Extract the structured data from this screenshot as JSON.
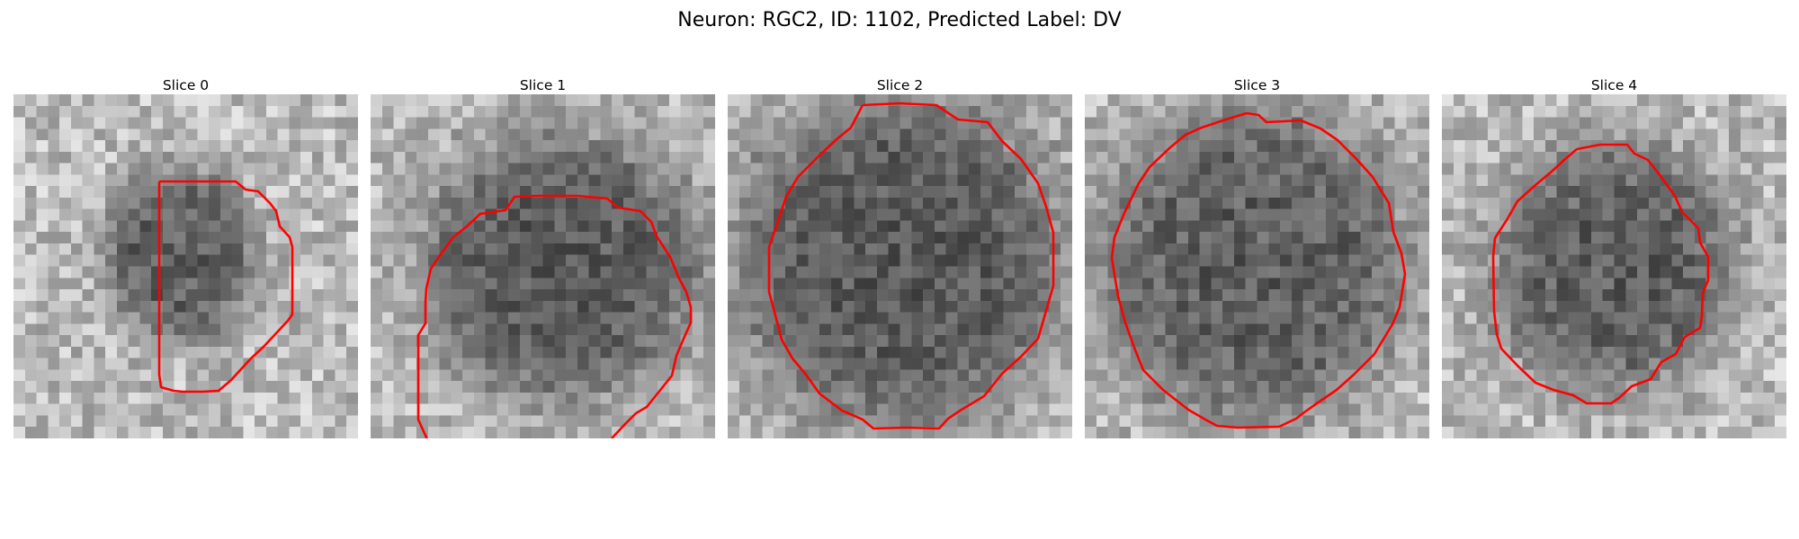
{
  "figure": {
    "title": "Neuron: RGC2, ID: 1102, Predicted Label: DV"
  },
  "slices": [
    {
      "label": "Slice 0"
    },
    {
      "label": "Slice 1"
    },
    {
      "label": "Slice 2"
    },
    {
      "label": "Slice 3"
    },
    {
      "label": "Slice 4"
    }
  ],
  "colors": {
    "contour": "#ff0000",
    "background": "#ffffff",
    "colormap": "grayscale"
  }
}
